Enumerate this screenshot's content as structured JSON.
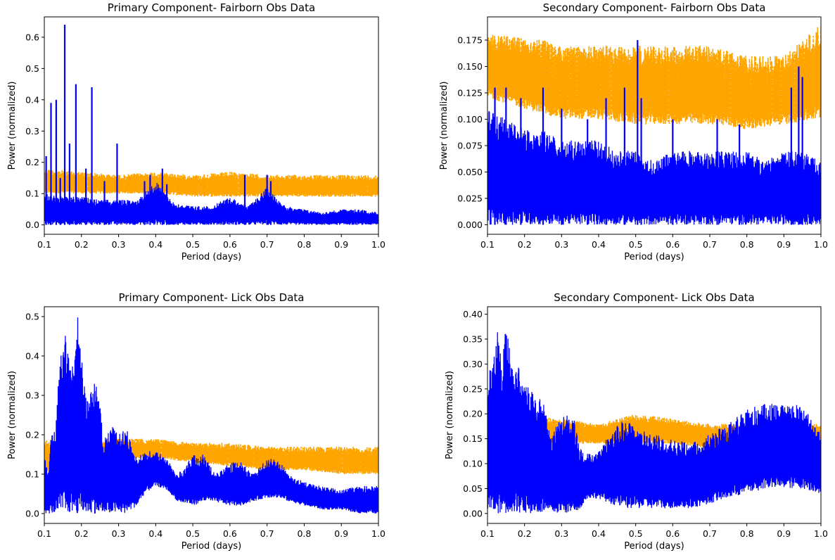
{
  "chart_data": [
    {
      "type": "line",
      "title": "Primary Component- Fairborn Obs Data",
      "xlabel": "Period (days)",
      "ylabel": "Power (normalized)",
      "xlim": [
        0.1,
        1.0
      ],
      "ylim": [
        -0.03,
        0.665
      ],
      "xticks": [
        "0.1",
        "0.2",
        "0.3",
        "0.4",
        "0.5",
        "0.6",
        "0.7",
        "0.8",
        "0.9",
        "1.0"
      ],
      "yticks": [
        "0.0",
        "0.1",
        "0.2",
        "0.3",
        "0.4",
        "0.5",
        "0.6"
      ],
      "grid": false,
      "series": [
        {
          "color": "#ffa500",
          "style": "dashed",
          "envelope_x": [
            0.1,
            0.2,
            0.3,
            0.4,
            0.5,
            0.6,
            0.7,
            0.8,
            0.9,
            1.0
          ],
          "envelope_low": [
            0.1,
            0.1,
            0.1,
            0.1,
            0.09,
            0.09,
            0.09,
            0.09,
            0.09,
            0.09
          ],
          "envelope_high": [
            0.18,
            0.17,
            0.16,
            0.17,
            0.16,
            0.17,
            0.16,
            0.16,
            0.16,
            0.16
          ]
        },
        {
          "color": "#0000ff",
          "style": "solid",
          "envelope_x": [
            0.1,
            0.15,
            0.2,
            0.25,
            0.3,
            0.35,
            0.4,
            0.45,
            0.5,
            0.55,
            0.6,
            0.65,
            0.7,
            0.75,
            0.8,
            0.85,
            0.9,
            0.95,
            1.0
          ],
          "envelope_high": [
            0.1,
            0.09,
            0.09,
            0.08,
            0.08,
            0.08,
            0.14,
            0.07,
            0.06,
            0.06,
            0.09,
            0.06,
            0.12,
            0.06,
            0.05,
            0.04,
            0.05,
            0.05,
            0.04
          ],
          "peaks": [
            [
              0.105,
              0.22
            ],
            [
              0.118,
              0.39
            ],
            [
              0.132,
              0.4
            ],
            [
              0.143,
              0.15
            ],
            [
              0.155,
              0.64
            ],
            [
              0.168,
              0.26
            ],
            [
              0.185,
              0.45
            ],
            [
              0.212,
              0.18
            ],
            [
              0.228,
              0.44
            ],
            [
              0.262,
              0.14
            ],
            [
              0.296,
              0.26
            ],
            [
              0.37,
              0.14
            ],
            [
              0.385,
              0.16
            ],
            [
              0.418,
              0.18
            ],
            [
              0.43,
              0.13
            ],
            [
              0.64,
              0.16
            ],
            [
              0.7,
              0.16
            ],
            [
              0.71,
              0.14
            ]
          ]
        }
      ]
    },
    {
      "type": "line",
      "title": "Secondary Component- Fairborn Obs Data",
      "xlabel": "Period (days)",
      "ylabel": "Power (normalized)",
      "xlim": [
        0.1,
        1.0
      ],
      "ylim": [
        -0.009,
        0.197
      ],
      "xticks": [
        "0.1",
        "0.2",
        "0.3",
        "0.4",
        "0.5",
        "0.6",
        "0.7",
        "0.8",
        "0.9",
        "1.0"
      ],
      "yticks": [
        "0.000",
        "0.025",
        "0.050",
        "0.075",
        "0.100",
        "0.125",
        "0.150",
        "0.175"
      ],
      "grid": false,
      "series": [
        {
          "color": "#ffa500",
          "style": "dashed",
          "envelope_x": [
            0.1,
            0.2,
            0.3,
            0.4,
            0.5,
            0.6,
            0.7,
            0.8,
            0.9,
            1.0
          ],
          "envelope_low": [
            0.12,
            0.11,
            0.1,
            0.1,
            0.095,
            0.095,
            0.095,
            0.09,
            0.095,
            0.1
          ],
          "envelope_high": [
            0.18,
            0.18,
            0.17,
            0.17,
            0.17,
            0.17,
            0.17,
            0.16,
            0.16,
            0.19
          ]
        },
        {
          "color": "#0000ff",
          "style": "solid",
          "envelope_x": [
            0.1,
            0.15,
            0.2,
            0.25,
            0.3,
            0.35,
            0.4,
            0.45,
            0.5,
            0.55,
            0.6,
            0.65,
            0.7,
            0.75,
            0.8,
            0.85,
            0.9,
            0.95,
            1.0
          ],
          "envelope_high": [
            0.11,
            0.1,
            0.09,
            0.09,
            0.08,
            0.08,
            0.08,
            0.07,
            0.07,
            0.06,
            0.07,
            0.07,
            0.07,
            0.07,
            0.07,
            0.06,
            0.07,
            0.07,
            0.06
          ],
          "peaks": [
            [
              0.12,
              0.13
            ],
            [
              0.15,
              0.13
            ],
            [
              0.19,
              0.12
            ],
            [
              0.25,
              0.13
            ],
            [
              0.3,
              0.11
            ],
            [
              0.37,
              0.1
            ],
            [
              0.42,
              0.12
            ],
            [
              0.47,
              0.13
            ],
            [
              0.505,
              0.175
            ],
            [
              0.515,
              0.12
            ],
            [
              0.6,
              0.1
            ],
            [
              0.72,
              0.1
            ],
            [
              0.78,
              0.095
            ],
            [
              0.92,
              0.13
            ],
            [
              0.94,
              0.15
            ],
            [
              0.95,
              0.14
            ]
          ]
        }
      ]
    },
    {
      "type": "line",
      "title": "Primary Component- Lick Obs Data",
      "xlabel": "Period (days)",
      "ylabel": "Power (normalized)",
      "xlim": [
        0.1,
        1.0
      ],
      "ylim": [
        -0.025,
        0.525
      ],
      "xticks": [
        "0.1",
        "0.2",
        "0.3",
        "0.4",
        "0.5",
        "0.6",
        "0.7",
        "0.8",
        "0.9",
        "1.0"
      ],
      "yticks": [
        "0.0",
        "0.1",
        "0.2",
        "0.3",
        "0.4",
        "0.5"
      ],
      "grid": false,
      "series": [
        {
          "color": "#ffa500",
          "style": "dashed",
          "envelope_x": [
            0.1,
            0.2,
            0.3,
            0.4,
            0.5,
            0.6,
            0.7,
            0.8,
            0.9,
            1.0
          ],
          "envelope_low": [
            0.1,
            0.12,
            0.14,
            0.14,
            0.13,
            0.12,
            0.11,
            0.11,
            0.1,
            0.1
          ],
          "envelope_high": [
            0.19,
            0.18,
            0.19,
            0.19,
            0.18,
            0.18,
            0.17,
            0.17,
            0.17,
            0.17
          ]
        },
        {
          "color": "#0000ff",
          "style": "solid",
          "envelope_x": [
            0.1,
            0.11,
            0.12,
            0.13,
            0.14,
            0.155,
            0.17,
            0.18,
            0.19,
            0.21,
            0.22,
            0.24,
            0.26,
            0.28,
            0.3,
            0.32,
            0.35,
            0.37,
            0.4,
            0.43,
            0.46,
            0.5,
            0.53,
            0.56,
            0.6,
            0.63,
            0.66,
            0.7,
            0.73,
            0.76,
            0.8,
            0.85,
            0.9,
            0.95,
            1.0
          ],
          "envelope_high": [
            0.15,
            0.1,
            0.23,
            0.2,
            0.38,
            0.46,
            0.4,
            0.38,
            0.5,
            0.31,
            0.29,
            0.37,
            0.18,
            0.24,
            0.2,
            0.22,
            0.14,
            0.16,
            0.16,
            0.14,
            0.1,
            0.15,
            0.15,
            0.1,
            0.13,
            0.13,
            0.1,
            0.14,
            0.14,
            0.1,
            0.08,
            0.07,
            0.06,
            0.07,
            0.07
          ],
          "envelope_low": [
            0.0,
            0.0,
            0.0,
            0.0,
            0.0,
            0.0,
            0.0,
            0.0,
            0.0,
            0.0,
            0.0,
            0.0,
            0.0,
            0.0,
            0.0,
            0.0,
            0.02,
            0.05,
            0.07,
            0.06,
            0.03,
            0.02,
            0.03,
            0.03,
            0.02,
            0.02,
            0.03,
            0.04,
            0.04,
            0.03,
            0.02,
            0.01,
            0.01,
            0.0,
            0.0
          ]
        }
      ]
    },
    {
      "type": "line",
      "title": "Secondary Component- Lick Obs Data",
      "xlabel": "Period (days)",
      "ylabel": "Power (normalized)",
      "xlim": [
        0.1,
        1.0
      ],
      "ylim": [
        -0.02,
        0.415
      ],
      "xticks": [
        "0.1",
        "0.2",
        "0.3",
        "0.4",
        "0.5",
        "0.6",
        "0.7",
        "0.8",
        "0.9",
        "1.0"
      ],
      "yticks": [
        "0.00",
        "0.05",
        "0.10",
        "0.15",
        "0.20",
        "0.25",
        "0.30",
        "0.35",
        "0.40"
      ],
      "grid": false,
      "series": [
        {
          "color": "#ffa500",
          "style": "dashed",
          "envelope_x": [
            0.1,
            0.2,
            0.3,
            0.4,
            0.5,
            0.6,
            0.7,
            0.8,
            0.9,
            1.0
          ],
          "envelope_low": [
            0.12,
            0.13,
            0.14,
            0.14,
            0.14,
            0.14,
            0.13,
            0.12,
            0.12,
            0.13
          ],
          "envelope_high": [
            0.2,
            0.2,
            0.19,
            0.18,
            0.2,
            0.19,
            0.18,
            0.18,
            0.18,
            0.18
          ]
        },
        {
          "color": "#0000ff",
          "style": "solid",
          "envelope_x": [
            0.1,
            0.115,
            0.13,
            0.14,
            0.15,
            0.17,
            0.18,
            0.2,
            0.23,
            0.25,
            0.27,
            0.3,
            0.33,
            0.35,
            0.37,
            0.4,
            0.43,
            0.47,
            0.5,
            0.55,
            0.6,
            0.65,
            0.7,
            0.75,
            0.8,
            0.85,
            0.9,
            0.95,
            1.0
          ],
          "envelope_high": [
            0.28,
            0.32,
            0.39,
            0.3,
            0.39,
            0.3,
            0.31,
            0.27,
            0.23,
            0.23,
            0.15,
            0.2,
            0.2,
            0.13,
            0.12,
            0.13,
            0.16,
            0.19,
            0.17,
            0.16,
            0.15,
            0.14,
            0.16,
            0.18,
            0.21,
            0.22,
            0.22,
            0.22,
            0.16
          ],
          "envelope_low": [
            0.0,
            0.0,
            0.0,
            0.0,
            0.0,
            0.0,
            0.0,
            0.0,
            0.0,
            0.0,
            0.0,
            0.0,
            0.0,
            0.01,
            0.03,
            0.03,
            0.02,
            0.01,
            0.01,
            0.01,
            0.01,
            0.01,
            0.02,
            0.03,
            0.04,
            0.05,
            0.05,
            0.05,
            0.04
          ]
        }
      ]
    }
  ]
}
